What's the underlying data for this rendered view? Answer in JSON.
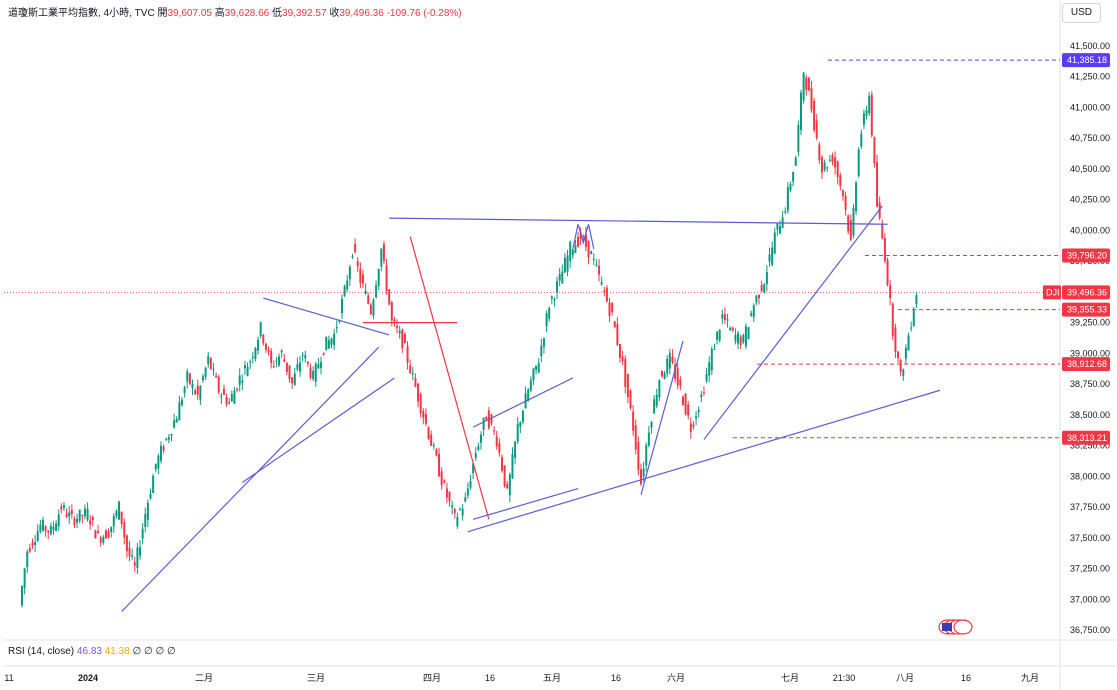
{
  "legend": {
    "symbol": "道瓊斯工業平均指數, 4小時, TVC",
    "open_label": "開",
    "open": "39,607.05",
    "high_label": "高",
    "high": "39,628.66",
    "low_label": "低",
    "low": "39,392.57",
    "close_label": "收",
    "close": "39,496.36",
    "change": "-109.76 (-0.28%)"
  },
  "currency": "USD",
  "rsi": {
    "label": "RSI (14, close)",
    "value1": "46.83",
    "value2": "41.38",
    "extra": "∅ ∅ ∅ ∅"
  },
  "chart_data": {
    "type": "candlestick",
    "ylim": [
      36700,
      41600
    ],
    "y_ticks": [
      "41,500.00",
      "41,250.00",
      "41,000.00",
      "40,750.00",
      "40,500.00",
      "40,250.00",
      "40,000.00",
      "39,750.00",
      "39,250.00",
      "39,000.00",
      "38,750.00",
      "38,500.00",
      "38,250.00",
      "38,000.00",
      "37,750.00",
      "37,500.00",
      "37,250.00",
      "37,000.00",
      "36,750.00"
    ],
    "y_tick_values": [
      41500,
      41250,
      41000,
      40750,
      40500,
      40250,
      40000,
      39750,
      39250,
      39000,
      38750,
      38500,
      38250,
      38000,
      37750,
      37500,
      37250,
      37000,
      36750
    ],
    "x_labels": [
      "11",
      "2024",
      "二月",
      "三月",
      "四月",
      "16",
      "五月",
      "16",
      "六月",
      "七月",
      "21:30",
      "八月",
      "16",
      "九月"
    ],
    "price_tags": [
      {
        "label": "41,385.18",
        "value": 41385.18,
        "color": "#5b3cf5"
      },
      {
        "label": "39,796.20",
        "value": 39796.2,
        "color": "#f23645"
      },
      {
        "label": "DJI",
        "value": 39496.36,
        "color": "#f23645"
      },
      {
        "label": "39,496.36",
        "value": 39496.36,
        "color": "#f23645"
      },
      {
        "label": "39,355.33",
        "value": 39355.33,
        "color": "#f23645"
      },
      {
        "label": "38,912.68",
        "value": 38912.68,
        "color": "#f23645"
      },
      {
        "label": "38,313.21",
        "value": 38313.21,
        "color": "#f23645"
      }
    ],
    "price_path": [
      [
        0,
        36950
      ],
      [
        3,
        37400
      ],
      [
        8,
        37600
      ],
      [
        12,
        37550
      ],
      [
        16,
        37750
      ],
      [
        20,
        37650
      ],
      [
        26,
        37700
      ],
      [
        30,
        37500
      ],
      [
        34,
        37550
      ],
      [
        38,
        37750
      ],
      [
        41,
        37400
      ],
      [
        44,
        37250
      ],
      [
        48,
        37700
      ],
      [
        52,
        38100
      ],
      [
        56,
        38300
      ],
      [
        60,
        38500
      ],
      [
        64,
        38800
      ],
      [
        68,
        38650
      ],
      [
        72,
        38950
      ],
      [
        76,
        38700
      ],
      [
        80,
        38600
      ],
      [
        84,
        38800
      ],
      [
        88,
        38950
      ],
      [
        92,
        39200
      ],
      [
        96,
        38900
      ],
      [
        100,
        39000
      ],
      [
        104,
        38750
      ],
      [
        108,
        39000
      ],
      [
        112,
        38800
      ],
      [
        116,
        39050
      ],
      [
        120,
        39150
      ],
      [
        124,
        39500
      ],
      [
        127,
        39850
      ],
      [
        130,
        39600
      ],
      [
        134,
        39350
      ],
      [
        138,
        39850
      ],
      [
        142,
        39250
      ],
      [
        146,
        39100
      ],
      [
        150,
        38800
      ],
      [
        154,
        38500
      ],
      [
        158,
        38200
      ],
      [
        162,
        37900
      ],
      [
        166,
        37650
      ],
      [
        170,
        37800
      ],
      [
        174,
        38200
      ],
      [
        178,
        38500
      ],
      [
        182,
        38300
      ],
      [
        186,
        37850
      ],
      [
        190,
        38400
      ],
      [
        194,
        38700
      ],
      [
        198,
        38950
      ],
      [
        202,
        39400
      ],
      [
        206,
        39600
      ],
      [
        210,
        39850
      ],
      [
        214,
        39950
      ],
      [
        218,
        39800
      ],
      [
        222,
        39550
      ],
      [
        226,
        39300
      ],
      [
        230,
        38900
      ],
      [
        234,
        38400
      ],
      [
        237,
        37950
      ],
      [
        240,
        38400
      ],
      [
        244,
        38800
      ],
      [
        248,
        38950
      ],
      [
        252,
        38700
      ],
      [
        256,
        38400
      ],
      [
        260,
        38650
      ],
      [
        264,
        39000
      ],
      [
        268,
        39300
      ],
      [
        272,
        39150
      ],
      [
        276,
        39100
      ],
      [
        280,
        39400
      ],
      [
        284,
        39600
      ],
      [
        288,
        39950
      ],
      [
        292,
        40200
      ],
      [
        296,
        40600
      ],
      [
        299,
        41300
      ],
      [
        302,
        41000
      ],
      [
        306,
        40500
      ],
      [
        310,
        40600
      ],
      [
        314,
        40300
      ],
      [
        317,
        39900
      ],
      [
        320,
        40700
      ],
      [
        324,
        41100
      ],
      [
        327,
        40200
      ],
      [
        330,
        39800
      ],
      [
        333,
        39200
      ],
      [
        336,
        38800
      ],
      [
        339,
        39150
      ],
      [
        342,
        39500
      ]
    ],
    "trendlines": [
      {
        "from": [
          38,
          36900
        ],
        "to": [
          136,
          39050
        ],
        "color": "#5b5bd6"
      },
      {
        "from": [
          84,
          37950
        ],
        "to": [
          142,
          38800
        ],
        "color": "#5b5bd6"
      },
      {
        "from": [
          92,
          39450
        ],
        "to": [
          140,
          39150
        ],
        "color": "#5b5bd6"
      },
      {
        "from": [
          140,
          40100
        ],
        "to": [
          330,
          40050
        ],
        "color": "#5b5bd6"
      },
      {
        "from": [
          170,
          37550
        ],
        "to": [
          350,
          38700
        ],
        "color": "#5b5bd6"
      },
      {
        "from": [
          172,
          37650
        ],
        "to": [
          212,
          37900
        ],
        "color": "#5b5bd6"
      },
      {
        "from": [
          172,
          38400
        ],
        "to": [
          210,
          38800
        ],
        "color": "#5b5bd6"
      },
      {
        "from": [
          236,
          37850
        ],
        "to": [
          252,
          39100
        ],
        "color": "#5b5bd6"
      },
      {
        "from": [
          260,
          38300
        ],
        "to": [
          328,
          40200
        ],
        "color": "#5b5bd6"
      },
      {
        "from": [
          148,
          39950
        ],
        "to": [
          178,
          37650
        ],
        "color": "#f23645"
      },
      {
        "from": [
          130,
          39250
        ],
        "to": [
          166,
          39250
        ],
        "color": "#f23645"
      }
    ]
  }
}
